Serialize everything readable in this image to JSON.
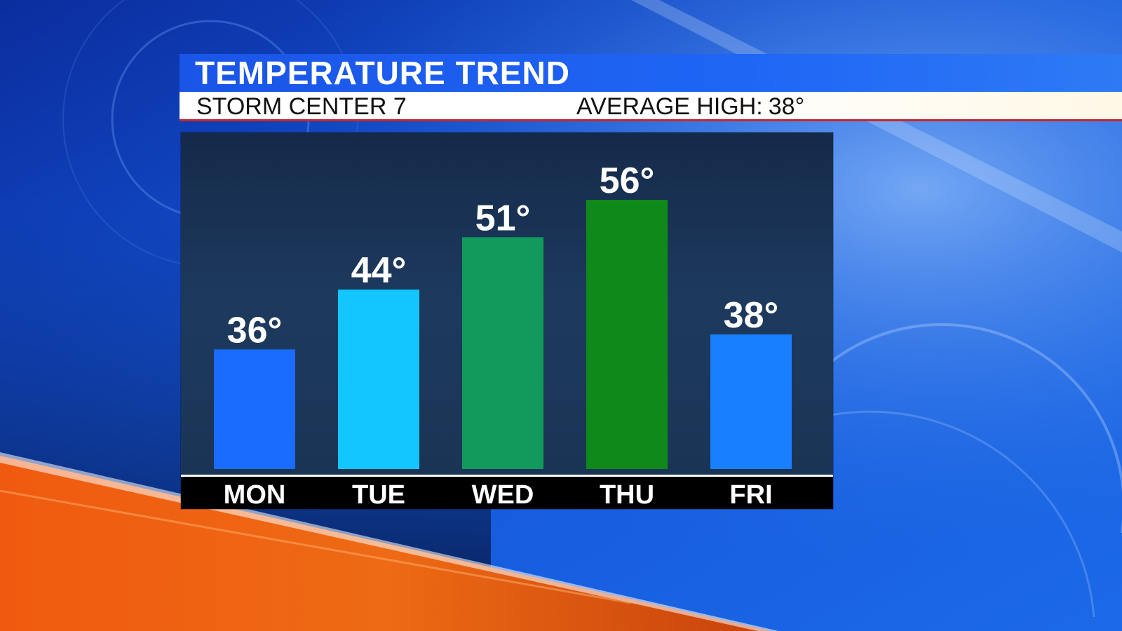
{
  "header": {
    "title": "TEMPERATURE TREND",
    "station": "STORM CENTER 7",
    "average_high_label": "AVERAGE HIGH:",
    "average_high_value": "38°"
  },
  "chart_data": {
    "type": "bar",
    "categories": [
      "MON",
      "TUE",
      "WED",
      "THU",
      "FRI"
    ],
    "values": [
      36,
      44,
      51,
      56,
      38
    ],
    "value_labels": [
      "36°",
      "44°",
      "51°",
      "56°",
      "38°"
    ],
    "bar_colors": [
      "#1a6bff",
      "#12c6ff",
      "#119a5c",
      "#0f8a1a",
      "#1880ff"
    ],
    "title": "TEMPERATURE TREND",
    "grid": false
  },
  "colors": {
    "title_bar": "#1f66f5",
    "accent_line": "#c8282a",
    "panel": "#1d3a5e",
    "axis_strip": "#000000"
  }
}
